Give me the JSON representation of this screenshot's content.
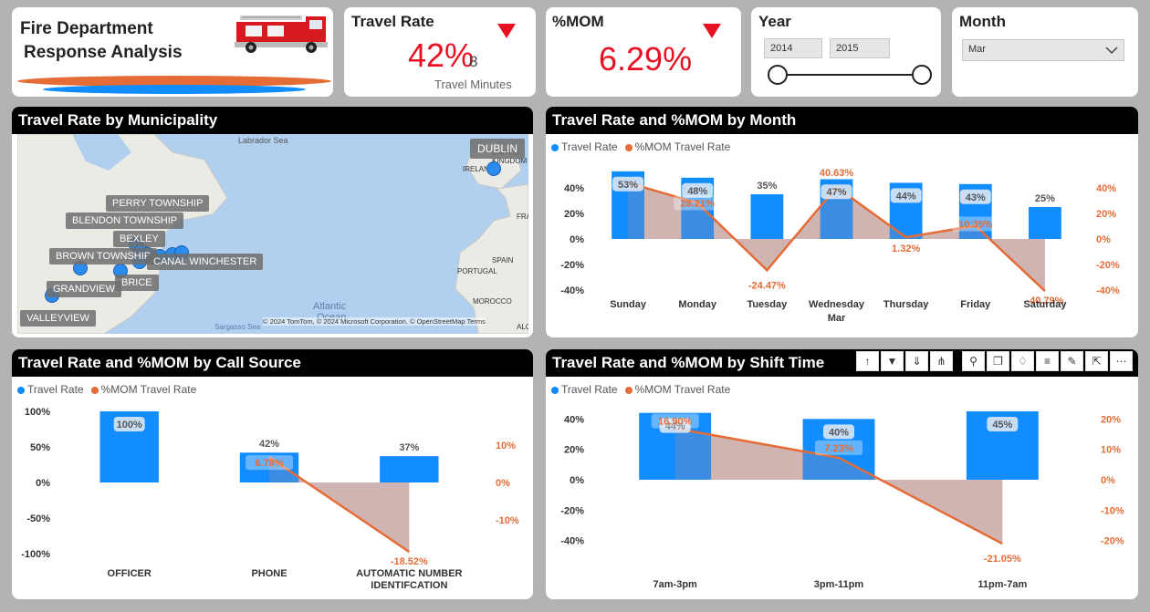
{
  "colors": {
    "bar": "#118dff",
    "line": "#e66c37",
    "area": "#f4c2ab",
    "kpi_red": "#e81123",
    "header": "#000000"
  },
  "title_card": {
    "line1": "Fire Department",
    "line2": "Response Analysis",
    "image_icon": "fire-truck-icon"
  },
  "kpi_travel": {
    "title": "Travel Rate",
    "value": "42%",
    "goal": "8",
    "subtitle": "Travel Minutes",
    "trend_icon": "down-triangle-icon"
  },
  "kpi_mom": {
    "title": "%MOM",
    "value": "6.29%",
    "trend_icon": "down-triangle-icon"
  },
  "year_slicer": {
    "title": "Year",
    "start": "2014",
    "end": "2015"
  },
  "month_slicer": {
    "title": "Month",
    "selected": "Mar"
  },
  "map_panel": {
    "title": "Travel Rate by Municipality",
    "labels": {
      "labrador": "Labrador Sea",
      "dublin": "DUBLIN",
      "united_kingdom": "UNITED\nKINGDOM",
      "ireland": "IRELAND",
      "perry": "PERRY TOWNSHIP",
      "blendon": "BLENDON TOWNSHIP",
      "bexley": "BEXLEY",
      "brown": "BROWN TOWNSHIP",
      "canal": "CANAL WINCHESTER",
      "brice": "BRICE",
      "grandview": "GRANDVIEW",
      "valleyview": "VALLEYVIEW",
      "portugal": "PORTUGAL",
      "spain": "SPAIN",
      "morocco": "MOROCCO",
      "fra": "FRA",
      "alg": "ALG",
      "atlantic": "Atlantic",
      "ocean": "Ocean",
      "sargasso": "Sargasso Sea",
      "attribution": "© 2024 TomTom, © 2024 Microsoft Corporation, © OpenStreetMap  Terms"
    }
  },
  "month_panel": {
    "title": "Travel Rate and %MOM by Month",
    "legend": {
      "travel": "Travel Rate",
      "mom": "%MOM Travel Rate"
    },
    "chart_data": {
      "type": "bar",
      "categories": [
        "Sunday",
        "Monday",
        "Tuesday",
        "Wednesday",
        "Thursday",
        "Friday",
        "Saturday"
      ],
      "x_group_label": "Mar",
      "series": [
        {
          "name": "Travel Rate",
          "values": [
            53,
            48,
            35,
            47,
            44,
            43,
            25
          ],
          "labels": [
            "53%",
            "48%",
            "35%",
            "47%",
            "44%",
            "43%",
            "25%"
          ]
        },
        {
          "name": "%MOM Travel Rate",
          "values": [
            44,
            28.21,
            -24.47,
            40.63,
            1.32,
            10.35,
            -40.79
          ],
          "labels": [
            "",
            "28.21%",
            "-24.47%",
            "40.63%",
            "1.32%",
            "10.35%",
            "-40.79%"
          ]
        }
      ],
      "y_left": {
        "ticks": [
          "40%",
          "20%",
          "0%",
          "-20%",
          "-40%"
        ],
        "range": [
          -45,
          55
        ]
      },
      "y_right": {
        "ticks": [
          "40%",
          "20%",
          "0%",
          "-20%",
          "-40%"
        ],
        "range": [
          -45,
          55
        ]
      }
    }
  },
  "call_panel": {
    "title": "Travel Rate and %MOM by Call Source",
    "legend": {
      "travel": "Travel Rate",
      "mom": "%MOM Travel Rate"
    },
    "chart_data": {
      "type": "bar",
      "categories": [
        "OFFICER",
        "PHONE",
        "AUTOMATIC NUMBER\nIDENTIFCATION"
      ],
      "series": [
        {
          "name": "Travel Rate",
          "values": [
            100,
            42,
            37
          ],
          "labels": [
            "100%",
            "42%",
            "37%"
          ]
        },
        {
          "name": "%MOM Travel Rate",
          "values": [
            null,
            6.78,
            -18.52
          ],
          "labels": [
            "",
            "6.78%",
            "-18.52%"
          ]
        }
      ],
      "y_left": {
        "ticks": [
          "100%",
          "50%",
          "0%",
          "-50%",
          "-100%"
        ],
        "range": [
          -100,
          100
        ]
      },
      "y_right": {
        "ticks": [
          "10%",
          "0%",
          "-10%"
        ],
        "range": [
          -19,
          19
        ]
      }
    }
  },
  "shift_panel": {
    "title": "Travel Rate and %MOM by Shift Time",
    "legend": {
      "travel": "Travel Rate",
      "mom": "%MOM Travel Rate"
    },
    "toolbar_icons": [
      "arrow-up-icon",
      "drill-down-icon",
      "expand-all-icon",
      "hierarchy-icon",
      "pin-icon",
      "copy-icon",
      "bell-icon",
      "filter-icon",
      "format-icon",
      "focus-mode-icon",
      "more-options-icon"
    ],
    "chart_data": {
      "type": "bar",
      "categories": [
        "7am-3pm",
        "3pm-11pm",
        "11pm-7am"
      ],
      "series": [
        {
          "name": "Travel Rate",
          "values": [
            44,
            40,
            45
          ],
          "labels": [
            "44%",
            "40%",
            "45%"
          ]
        },
        {
          "name": "%MOM Travel Rate",
          "values": [
            16.9,
            7.23,
            -21.05
          ],
          "labels": [
            "16.90%",
            "7.23%",
            "-21.05%"
          ]
        }
      ],
      "y_left": {
        "ticks": [
          "40%",
          "20%",
          "0%",
          "-20%",
          "-40%"
        ],
        "range": [
          -45,
          45
        ]
      },
      "y_right": {
        "ticks": [
          "20%",
          "10%",
          "0%",
          "-10%",
          "-20%"
        ],
        "range": [
          -22.5,
          22.5
        ]
      }
    }
  }
}
